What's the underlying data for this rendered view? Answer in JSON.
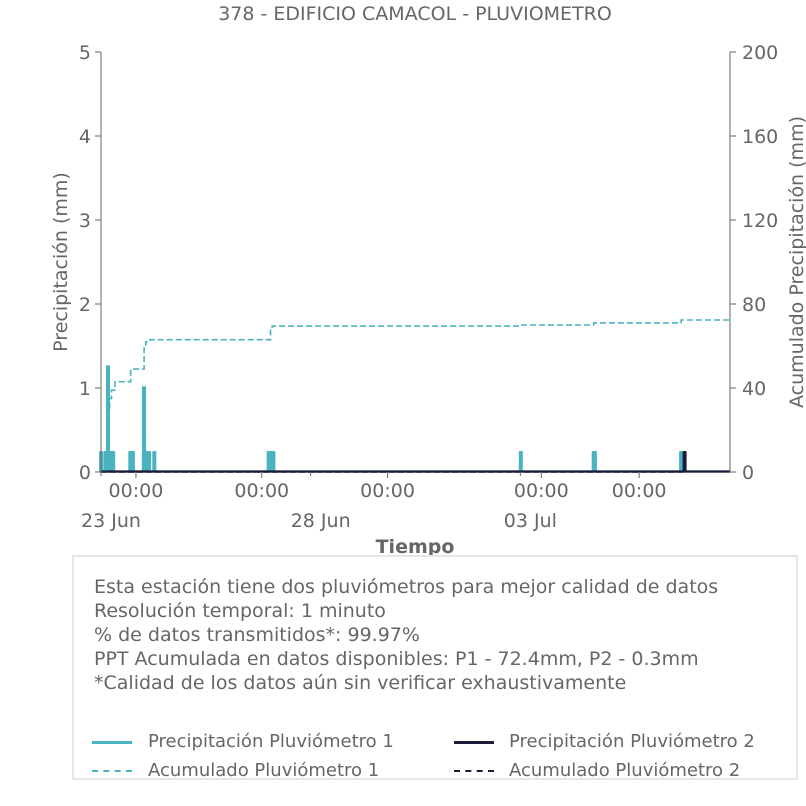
{
  "chart_data": {
    "type": "bar",
    "title": "378 - EDIFICIO CAMACOL - PLUVIOMETRO",
    "xlabel": "Tiempo",
    "ylabel": "Precipitación (mm)",
    "ylabel_right": "Acumulado Precipitación (mm)",
    "ylim": [
      0,
      5
    ],
    "ylim_right": [
      0,
      200
    ],
    "yticks": [
      0,
      1,
      2,
      3,
      4,
      5
    ],
    "yticks_right": [
      0,
      40,
      80,
      120,
      160,
      200
    ],
    "xlim": [
      "2025-06-22T04:00",
      "2025-07-07T04:00"
    ],
    "xticks_major": [
      {
        "t": "2025-06-23T00:00",
        "label": "00:00"
      },
      {
        "t": "2025-06-26T00:00",
        "label": "00:00"
      },
      {
        "t": "2025-06-29T00:00",
        "label": "00:00"
      },
      {
        "t": "2025-07-02T16:00",
        "label": "00:00"
      },
      {
        "t": "2025-07-05T00:00",
        "label": "00:00"
      }
    ],
    "xticks_date": [
      {
        "t": "2025-06-22T04:00",
        "label": "23 Jun"
      },
      {
        "t": "2025-06-27T04:00",
        "label": "28 Jun"
      },
      {
        "t": "2025-07-02T04:00",
        "label": "03 Jul"
      }
    ],
    "grid": false,
    "series": [
      {
        "name": "Precipitación Pluviómetro 1",
        "kind": "bar",
        "color": "#4ab3c0",
        "points": [
          [
            "2025-06-22T04:05",
            0.25
          ],
          [
            "2025-06-22T06:30",
            0.25
          ],
          [
            "2025-06-22T07:20",
            0.25
          ],
          [
            "2025-06-22T07:50",
            0.25
          ],
          [
            "2025-06-22T08:00",
            1.27
          ],
          [
            "2025-06-22T08:15",
            0.25
          ],
          [
            "2025-06-22T08:40",
            0.25
          ],
          [
            "2025-06-22T09:10",
            0.25
          ],
          [
            "2025-06-22T09:40",
            0.25
          ],
          [
            "2025-06-22T10:10",
            0.25
          ],
          [
            "2025-06-22T10:40",
            0.25
          ],
          [
            "2025-06-22T11:00",
            0.25
          ],
          [
            "2025-06-22T20:45",
            0.25
          ],
          [
            "2025-06-22T21:15",
            0.25
          ],
          [
            "2025-06-22T21:45",
            0.25
          ],
          [
            "2025-06-22T22:15",
            0.25
          ],
          [
            "2025-06-23T04:30",
            0.25
          ],
          [
            "2025-06-23T04:35",
            1.02
          ],
          [
            "2025-06-23T04:40",
            0.51
          ],
          [
            "2025-06-23T05:40",
            0.25
          ],
          [
            "2025-06-23T07:30",
            0.25
          ],
          [
            "2025-06-23T10:30",
            0.25
          ],
          [
            "2025-06-26T04:00",
            0.25
          ],
          [
            "2025-06-26T04:40",
            0.25
          ],
          [
            "2025-06-26T05:20",
            0.25
          ],
          [
            "2025-06-26T06:40",
            0.25
          ],
          [
            "2025-07-02T04:15",
            0.25
          ],
          [
            "2025-07-03T22:00",
            0.25
          ],
          [
            "2025-07-03T22:40",
            0.25
          ],
          [
            "2025-07-06T00:00",
            0.25
          ]
        ]
      },
      {
        "name": "Precipitación Pluviómetro 2",
        "kind": "bar",
        "color": "#1b1b3a",
        "points": [
          [
            "2025-07-06T02:00",
            0.25
          ]
        ]
      },
      {
        "name": "Acumulado Pluviómetro 1",
        "kind": "step-line",
        "axis": "right",
        "color": "#4ab3c0",
        "points": [
          [
            "2025-06-22T04:00",
            0
          ],
          [
            "2025-06-22T07:00",
            5
          ],
          [
            "2025-06-22T08:00",
            20
          ],
          [
            "2025-06-22T08:20",
            30
          ],
          [
            "2025-06-22T09:00",
            35
          ],
          [
            "2025-06-22T10:00",
            39
          ],
          [
            "2025-06-22T12:00",
            43
          ],
          [
            "2025-06-22T20:00",
            43
          ],
          [
            "2025-06-22T21:00",
            49
          ],
          [
            "2025-06-23T04:00",
            49
          ],
          [
            "2025-06-23T04:40",
            59
          ],
          [
            "2025-06-23T05:40",
            62
          ],
          [
            "2025-06-23T08:00",
            63
          ],
          [
            "2025-06-26T04:00",
            63
          ],
          [
            "2025-06-26T05:00",
            68
          ],
          [
            "2025-06-26T06:00",
            69.5
          ],
          [
            "2025-07-02T04:00",
            70
          ],
          [
            "2025-07-03T22:00",
            71
          ],
          [
            "2025-07-06T00:00",
            72.4
          ],
          [
            "2025-07-07T04:00",
            72.4
          ]
        ]
      },
      {
        "name": "Acumulado Pluviómetro 2",
        "kind": "step-line",
        "axis": "right",
        "color": "#1b1b3a",
        "points": [
          [
            "2025-06-22T04:00",
            0
          ],
          [
            "2025-07-06T02:00",
            0.3
          ],
          [
            "2025-07-07T04:00",
            0.3
          ]
        ]
      }
    ]
  },
  "info": {
    "line1": "Esta estación tiene dos pluviómetros para mejor calidad de datos",
    "line2": "Resolución temporal: 1 minuto",
    "line3": "% de datos transmitidos*: 99.97%",
    "line4": "PPT Acumulada en datos disponibles: P1 - 72.4mm, P2 - 0.3mm",
    "line5": "*Calidad de los datos aún sin verificar exhaustivamente"
  },
  "legend": {
    "p1": "Precipitación Pluviómetro 1",
    "p2": "Precipitación Pluviómetro 2",
    "a1": "Acumulado Pluviómetro 1",
    "a2": "Acumulado Pluviómetro 2",
    "color1": "#4ab3c0",
    "color2": "#1b1b3a"
  }
}
